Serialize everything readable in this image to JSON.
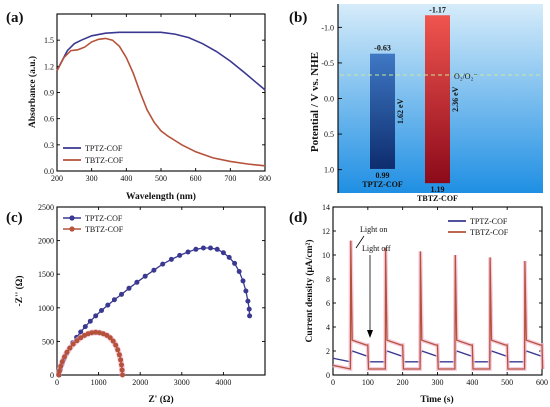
{
  "chart_data": [
    {
      "panel": "(a)",
      "type": "line",
      "xlabel": "Wavelength (nm)",
      "ylabel": "Absorbance (a.u.)",
      "xlim": [
        200,
        800
      ],
      "ylim": [
        0.0,
        1.8
      ],
      "xticks": [
        "200",
        "300",
        "400",
        "500",
        "600",
        "700",
        "800"
      ],
      "yticks": [
        "0.0",
        "0.3",
        "0.6",
        "0.9",
        "1.2",
        "1.5"
      ],
      "legend_position": "lower-left",
      "series": [
        {
          "name": "TPTZ-COF",
          "color": "#3a3890",
          "x": [
            200,
            210,
            230,
            250,
            270,
            300,
            340,
            380,
            420,
            460,
            500,
            540,
            580,
            620,
            660,
            700,
            740,
            770,
            800
          ],
          "y": [
            1.15,
            1.23,
            1.38,
            1.46,
            1.5,
            1.55,
            1.58,
            1.59,
            1.59,
            1.59,
            1.59,
            1.57,
            1.53,
            1.46,
            1.37,
            1.26,
            1.13,
            1.03,
            0.93
          ]
        },
        {
          "name": "TBTZ-COF",
          "color": "#b5523b",
          "x": [
            200,
            220,
            240,
            260,
            280,
            300,
            320,
            340,
            360,
            380,
            400,
            420,
            440,
            460,
            480,
            500,
            520,
            540,
            560,
            600,
            650,
            700,
            750,
            800
          ],
          "y": [
            1.15,
            1.3,
            1.38,
            1.39,
            1.42,
            1.48,
            1.51,
            1.52,
            1.5,
            1.43,
            1.3,
            1.12,
            0.9,
            0.7,
            0.56,
            0.46,
            0.4,
            0.35,
            0.3,
            0.22,
            0.15,
            0.11,
            0.08,
            0.06
          ]
        }
      ]
    },
    {
      "panel": "(b)",
      "type": "bar",
      "ylabel": "Potential / V vs. NHE",
      "ylim": [
        -1.3,
        1.3
      ],
      "yticks": [
        "-1.0",
        "-0.5",
        "0.0",
        "0.5",
        "1.0"
      ],
      "reference_label": "O₂/O₂⁻",
      "reference_value": -0.33,
      "categories": [
        "TPTZ-COF",
        "TBTZ-COF"
      ],
      "bars": [
        {
          "name": "TPTZ-COF",
          "cb": -0.63,
          "vb": 0.99,
          "cb_label": "-0.63",
          "vb_label": "0.99",
          "gap_label": "1.62 eV",
          "top_color": "#3f78c4",
          "bottom_color": "#0d2d6e"
        },
        {
          "name": "TBTZ-COF",
          "cb": -1.17,
          "vb": 1.19,
          "cb_label": "-1.17",
          "vb_label": "1.19",
          "gap_label": "2.36 eV",
          "top_color": "#f0554f",
          "bottom_color": "#8c0a1a"
        }
      ]
    },
    {
      "panel": "(c)",
      "type": "scatter",
      "xlabel": "Z' (Ω)",
      "ylabel": "-Z'' (Ω)",
      "xlim": [
        0,
        5000
      ],
      "ylim": [
        0,
        2500
      ],
      "xticks": [
        "0",
        "1000",
        "2000",
        "3000",
        "4000"
      ],
      "yticks": [
        "0",
        "500",
        "1000",
        "1500",
        "2000",
        "2500"
      ],
      "legend_position": "top-left",
      "series": [
        {
          "name": "TPTZ-COF",
          "color": "#3a3890",
          "marker": "circle",
          "x": [
            50,
            80,
            120,
            170,
            230,
            300,
            380,
            470,
            570,
            680,
            800,
            930,
            1070,
            1220,
            1380,
            1550,
            1730,
            1920,
            2120,
            2330,
            2540,
            2750,
            2950,
            3150,
            3340,
            3520,
            3690,
            3850,
            4000,
            4140,
            4270,
            4380,
            4470,
            4540,
            4590,
            4620,
            4630
          ],
          "y": [
            0,
            80,
            160,
            240,
            320,
            400,
            480,
            560,
            640,
            720,
            800,
            880,
            960,
            1040,
            1120,
            1200,
            1290,
            1380,
            1470,
            1560,
            1650,
            1720,
            1780,
            1830,
            1870,
            1890,
            1890,
            1870,
            1820,
            1750,
            1660,
            1540,
            1400,
            1250,
            1100,
            980,
            880
          ]
        },
        {
          "name": "TBTZ-COF",
          "color": "#b5523b",
          "marker": "circle",
          "x": [
            40,
            60,
            90,
            130,
            180,
            240,
            310,
            390,
            480,
            570,
            660,
            750,
            840,
            930,
            1020,
            1110,
            1200,
            1280,
            1350,
            1410,
            1460,
            1500,
            1530,
            1550,
            1565,
            1575
          ],
          "y": [
            0,
            60,
            130,
            200,
            270,
            340,
            400,
            460,
            510,
            555,
            590,
            615,
            630,
            635,
            630,
            615,
            590,
            555,
            505,
            445,
            375,
            300,
            225,
            150,
            75,
            0
          ]
        }
      ]
    },
    {
      "panel": "(d)",
      "type": "line",
      "xlabel": "Time (s)",
      "ylabel": "Current density (μA/cm²)",
      "xlim": [
        0,
        600
      ],
      "ylim": [
        0,
        14
      ],
      "xticks": [
        "0",
        "100",
        "200",
        "300",
        "400",
        "500",
        "600"
      ],
      "yticks": [
        "0",
        "2",
        "4",
        "6",
        "8",
        "10",
        "12",
        "14"
      ],
      "legend_position": "top-right",
      "annotations": [
        "Light on",
        "Light off"
      ],
      "light_on_times": [
        50,
        150,
        250,
        350,
        450,
        550
      ],
      "light_off_times": [
        100,
        200,
        300,
        400,
        500
      ],
      "series": [
        {
          "name": "TPTZ-COF",
          "color": "#3a3890",
          "dark_level": 1.1,
          "light_level": 1.6,
          "peak_values": [
            1.7,
            1.7,
            1.7,
            1.7,
            1.7,
            1.7
          ]
        },
        {
          "name": "TBTZ-COF",
          "color": "#b5523b",
          "dark_level": 0.5,
          "light_level": 2.5,
          "peak_values": [
            11.2,
            10.6,
            10.3,
            10.0,
            9.8,
            9.5
          ]
        }
      ]
    }
  ]
}
